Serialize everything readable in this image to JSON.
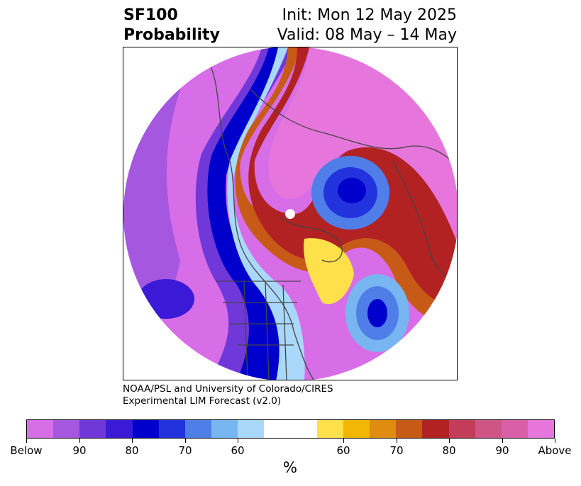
{
  "title": {
    "left_line1": "SF100",
    "left_line2": "Probability",
    "right_line1": "Init: Mon 12 May 2025",
    "right_line2": "Valid: 08 May – 14 May"
  },
  "credit": {
    "line1": "NOAA/PSL and University of Colorado/CIRES",
    "line2": "Experimental LIM Forecast (v2.0)"
  },
  "colorbar": {
    "colors": [
      "#d76ee8",
      "#a557e0",
      "#7038d8",
      "#3a1ad6",
      "#0000cc",
      "#2233dd",
      "#4f7ee8",
      "#77b6f0",
      "#aad8fa",
      "#ffffff",
      "#ffffff",
      "#fde04a",
      "#f2b705",
      "#e08c10",
      "#c85a18",
      "#b22222",
      "#c33d5a",
      "#cf5585",
      "#d960a8",
      "#e676dc"
    ],
    "labels": [
      "Below",
      "90",
      "80",
      "70",
      "60",
      "60",
      "70",
      "80",
      "90",
      "Above"
    ],
    "unit": "%"
  },
  "map": {
    "projection": "north-polar-stereographic",
    "icon": "coastlines-borders"
  }
}
